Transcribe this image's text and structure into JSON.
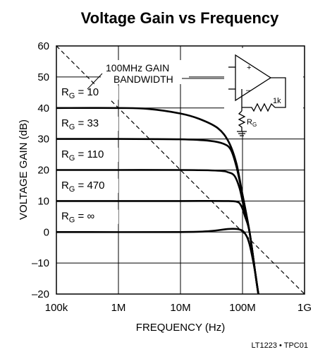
{
  "chart_data": {
    "type": "line",
    "title": "Voltage Gain vs Frequency",
    "xlabel": "FREQUENCY (Hz)",
    "ylabel": "VOLTAGE GAIN (dB)",
    "x_scale": "log",
    "xlim": [
      100000,
      1000000000
    ],
    "ylim": [
      -20,
      60
    ],
    "x_ticks": [
      {
        "value": 100000,
        "label": "100k"
      },
      {
        "value": 1000000,
        "label": "1M"
      },
      {
        "value": 10000000,
        "label": "10M"
      },
      {
        "value": 100000000,
        "label": "100M"
      },
      {
        "value": 1000000000,
        "label": "1G"
      }
    ],
    "y_ticks": [
      {
        "value": 60,
        "label": "60"
      },
      {
        "value": 50,
        "label": "50"
      },
      {
        "value": 40,
        "label": "40"
      },
      {
        "value": 30,
        "label": "30"
      },
      {
        "value": 20,
        "label": "20"
      },
      {
        "value": 10,
        "label": "10"
      },
      {
        "value": 0,
        "label": "0"
      },
      {
        "value": -10,
        "label": "–10"
      },
      {
        "value": -20,
        "label": "–20"
      }
    ],
    "grid": true,
    "series": [
      {
        "label_sub": "G",
        "label_value": "10",
        "label_pos": [
          120000,
          44
        ],
        "x": [
          100000,
          1000000,
          3000000,
          10000000,
          20000000,
          40000000,
          60000000,
          80000000,
          100000000,
          130000000,
          160000000,
          180000000
        ],
        "y": [
          40,
          40,
          39.7,
          38.2,
          36.5,
          33.5,
          29,
          22,
          12,
          0,
          -13,
          -20
        ]
      },
      {
        "label_sub": "G",
        "label_value": "33",
        "label_pos": [
          120000,
          34
        ],
        "x": [
          100000,
          1000000,
          10000000,
          30000000,
          50000000,
          65000000,
          80000000,
          100000000,
          130000000,
          160000000,
          180000000
        ],
        "y": [
          30,
          30,
          29.9,
          29.4,
          28.4,
          26.5,
          21,
          12,
          0,
          -13,
          -20
        ]
      },
      {
        "label_sub": "G",
        "label_value": "110",
        "label_pos": [
          120000,
          24
        ],
        "x": [
          100000,
          1000000,
          10000000,
          40000000,
          60000000,
          75000000,
          90000000,
          105000000,
          130000000,
          160000000,
          180000000
        ],
        "y": [
          20,
          20,
          20,
          19.8,
          19.2,
          18,
          14,
          8,
          0,
          -13,
          -20
        ]
      },
      {
        "label_sub": "G",
        "label_value": "470",
        "label_pos": [
          120000,
          14
        ],
        "x": [
          100000,
          1000000,
          10000000,
          50000000,
          80000000,
          95000000,
          110000000,
          130000000,
          160000000,
          180000000
        ],
        "y": [
          10,
          10,
          10,
          10,
          9.8,
          8.5,
          5,
          0,
          -13,
          -20
        ]
      },
      {
        "label_sub": "G",
        "label_value": "∞",
        "label_pos": [
          120000,
          4
        ],
        "x": [
          100000,
          10000000,
          30000000,
          60000000,
          90000000,
          110000000,
          130000000,
          160000000,
          180000000
        ],
        "y": [
          0,
          0,
          0.3,
          1,
          0.8,
          -0.5,
          -4,
          -13,
          -20
        ]
      }
    ],
    "reference_line": {
      "x": [
        100000,
        1000000000
      ],
      "y": [
        60,
        -20
      ],
      "style": "dashed"
    },
    "annotations": {
      "gbw_line1": "100MHz GAIN",
      "gbw_line2": "BANDWIDTH",
      "series_label_prefix": "R",
      "series_label_eq": " = ",
      "resistor_feedback": "1k",
      "resistor_rg_main": "R",
      "resistor_rg_sub": "G",
      "plus_sign": "+",
      "minus_sign": "–",
      "part_code": "LT1223 • TPC01"
    }
  }
}
